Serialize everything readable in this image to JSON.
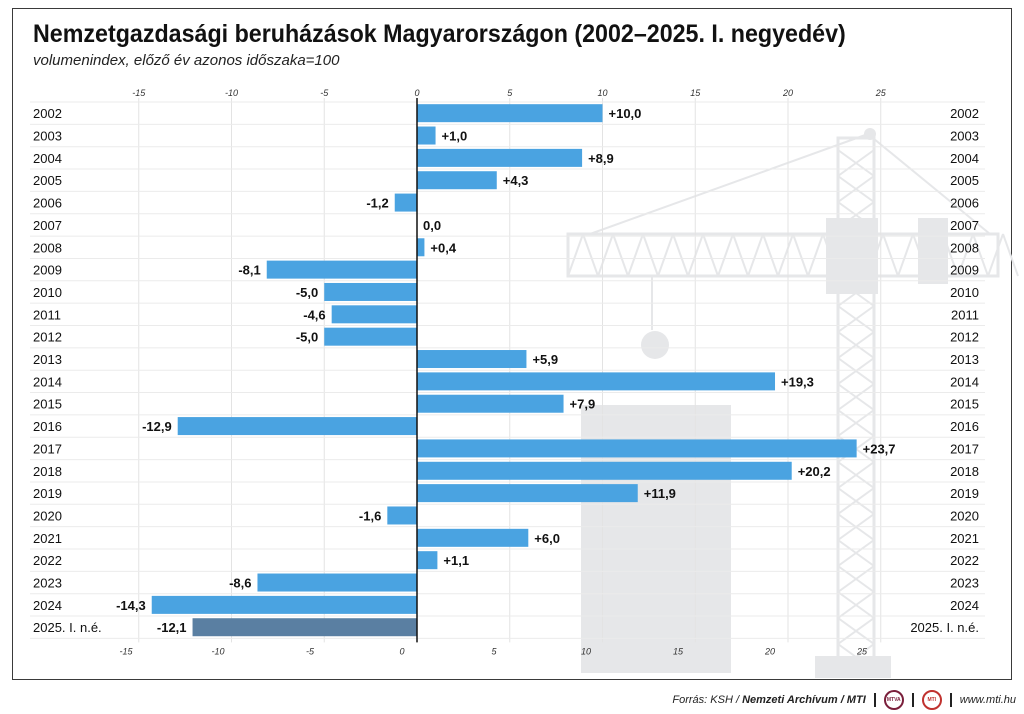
{
  "title": "Nemzetgazdasági beruházások Magyarországon (2002–2025. I. negyedév)",
  "subtitle": "volumenindex, előző év azonos időszaka=100",
  "colors": {
    "bar": "#4aa3e1",
    "bar_highlight": "#5a7fa2",
    "grid": "#e3e3e3",
    "background_graphic": "#e6e7e9"
  },
  "chart_data": {
    "type": "bar",
    "orientation": "horizontal",
    "categories": [
      "2002",
      "2003",
      "2004",
      "2005",
      "2006",
      "2007",
      "2008",
      "2009",
      "2010",
      "2011",
      "2012",
      "2013",
      "2014",
      "2015",
      "2016",
      "2017",
      "2018",
      "2019",
      "2020",
      "2021",
      "2022",
      "2023",
      "2024",
      "2025. I. n.é."
    ],
    "values": [
      10.0,
      1.0,
      8.9,
      4.3,
      -1.2,
      0.0,
      0.4,
      -8.1,
      -5.0,
      -4.6,
      -5.0,
      5.9,
      19.3,
      7.9,
      -12.9,
      23.7,
      20.2,
      11.9,
      -1.6,
      6.0,
      1.1,
      -8.6,
      -14.3,
      -12.1
    ],
    "value_labels": [
      "+10,0",
      "+1,0",
      "+8,9",
      "+4,3",
      "-1,2",
      "0,0",
      "+0,4",
      "-8,1",
      "-5,0",
      "-4,6",
      "-5,0",
      "+5,9",
      "+19,3",
      "+7,9",
      "-12,9",
      "+23,7",
      "+20,2",
      "+11,9",
      "-1,6",
      "+6,0",
      "+1,1",
      "-8,6",
      "-14,3",
      "-12,1"
    ],
    "highlight_index": 23,
    "xlim": [
      -15,
      28
    ],
    "ticks_top": [
      -15,
      -10,
      -5,
      0,
      5,
      10,
      15,
      20,
      25
    ],
    "ticks_bottom": [
      -15,
      -10,
      -5,
      0,
      5,
      10,
      15,
      20,
      25
    ],
    "grid": true
  },
  "footer": {
    "source_prefix": "Forrás: KSH /",
    "source_archive": "Nemzeti Archívum / MTI",
    "logo1": "MTVA",
    "logo2": "MTI",
    "url": "www.mti.hu"
  }
}
